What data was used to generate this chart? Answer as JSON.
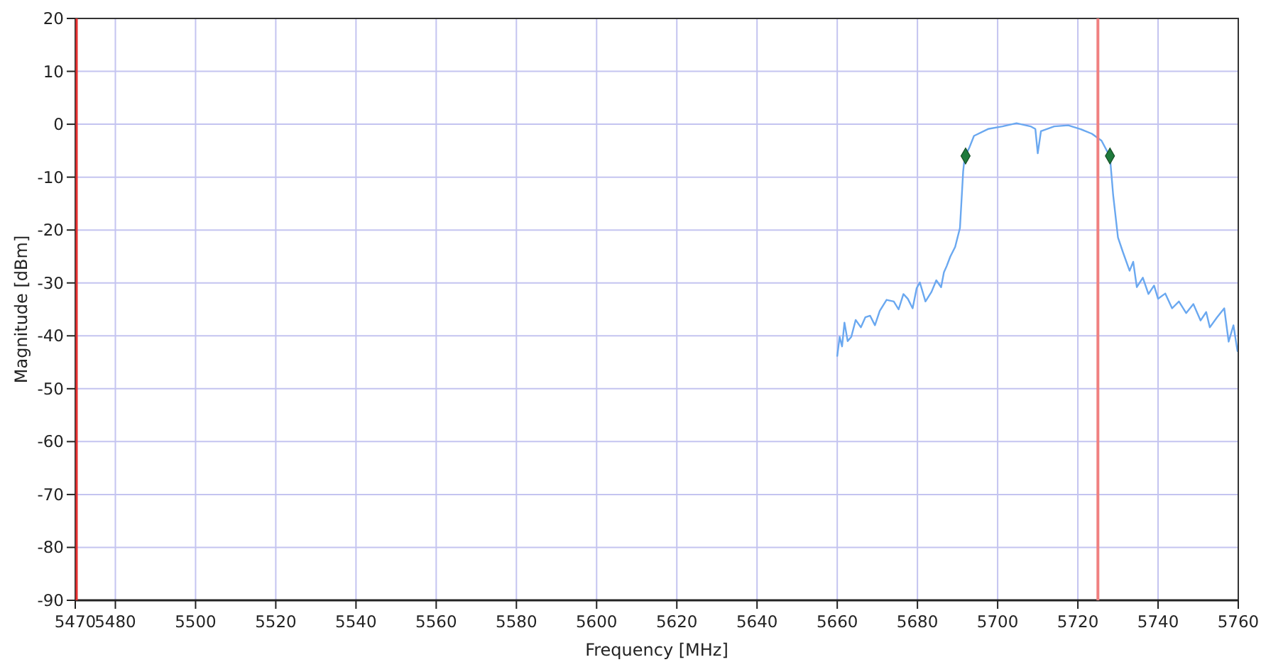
{
  "chart_data": {
    "type": "line",
    "xlabel": "Frequency [MHz]",
    "ylabel": "Magnitude [dBm]",
    "xlim": [
      5470,
      5760
    ],
    "ylim": [
      -90,
      20
    ],
    "xticks": [
      5470,
      5480,
      5500,
      5520,
      5540,
      5560,
      5580,
      5600,
      5620,
      5640,
      5660,
      5680,
      5700,
      5720,
      5740,
      5760
    ],
    "yticks": [
      -90,
      -80,
      -70,
      -60,
      -50,
      -40,
      -30,
      -20,
      -10,
      0,
      10,
      20
    ],
    "grid": true,
    "series": [
      {
        "type": "line",
        "color": "#6aa8f0",
        "marker": "none",
        "x": [
          5660,
          5660.6,
          5661.2,
          5661.8,
          5662.6,
          5663.5,
          5664.6,
          5665.9,
          5667,
          5668.2,
          5669.4,
          5670.6,
          5672.3,
          5674.1,
          5675.3,
          5676.5,
          5677.6,
          5678.8,
          5679.8,
          5680.6,
          5682,
          5683.5,
          5684.7,
          5685.9,
          5686.6,
          5687.3,
          5688.2,
          5689.4,
          5690.6,
          5691.4,
          5691.8,
          5692.9,
          5694.1,
          5697.6,
          5701.2,
          5704.7,
          5708.2,
          5709.4,
          5710,
          5710.8,
          5714.1,
          5717.6,
          5720.6,
          5723.5,
          5725.9,
          5728,
          5728.8,
          5730,
          5731.2,
          5732.9,
          5733.8,
          5734.7,
          5736.2,
          5737.6,
          5739,
          5740,
          5741.8,
          5743.5,
          5745.2,
          5747,
          5748.8,
          5750.6,
          5752,
          5752.9,
          5754.7,
          5756.5,
          5757.6,
          5758.8,
          5759.8
        ],
        "values": [
          -43.8,
          -40.2,
          -42,
          -37.5,
          -41,
          -40.2,
          -37,
          -38.4,
          -36.5,
          -36.2,
          -38,
          -35.3,
          -33.2,
          -33.5,
          -35,
          -32.1,
          -33,
          -34.8,
          -31,
          -29.9,
          -33.5,
          -31.7,
          -29.5,
          -30.8,
          -28,
          -26.8,
          -25,
          -23.2,
          -19.6,
          -8.9,
          -6.1,
          -4.5,
          -2.2,
          -0.9,
          -0.4,
          0.2,
          -0.4,
          -0.9,
          -5.5,
          -1.3,
          -0.4,
          -0.2,
          -0.9,
          -1.8,
          -3.1,
          -6.1,
          -13.4,
          -21.4,
          -24.1,
          -27.7,
          -26,
          -30.8,
          -29,
          -32.1,
          -30.5,
          -33,
          -32,
          -34.8,
          -33.5,
          -35.7,
          -34,
          -37.1,
          -35.5,
          -38.4,
          -36.5,
          -34.8,
          -41.1,
          -38,
          -42.9
        ]
      },
      {
        "type": "scatter",
        "color": "#1e7a3c",
        "marker": "diamond",
        "x": [
          5692,
          5728
        ],
        "values": [
          -6,
          -6
        ]
      }
    ],
    "ref_lines": [
      {
        "axis": "x",
        "value": 5725,
        "color": "#f08080"
      }
    ]
  }
}
